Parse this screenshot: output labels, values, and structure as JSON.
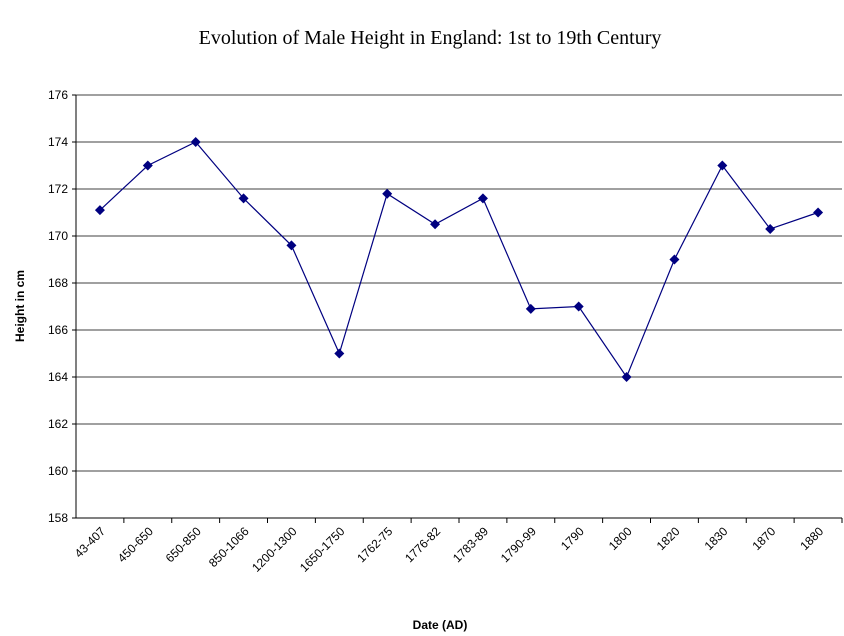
{
  "chart_data": {
    "type": "line",
    "title": "Evolution of Male Height in England: 1st to 19th Century",
    "x_label": "Date (AD)",
    "y_label": "Height in cm",
    "categories": [
      "43-407",
      "450-650",
      "650-850",
      "850-1066",
      "1200-1300",
      "1650-1750",
      "1762-75",
      "1776-82",
      "1783-89",
      "1790-99",
      "1790",
      "1800",
      "1820",
      "1830",
      "1870",
      "1880"
    ],
    "series": [
      {
        "name": "Height",
        "color": "#000080",
        "values": [
          171.1,
          173,
          174,
          171.6,
          169.6,
          165,
          171.8,
          170.5,
          171.6,
          166.9,
          167,
          164,
          169,
          173,
          170.3,
          171
        ]
      }
    ],
    "ylim": [
      158,
      176
    ],
    "yticks": [
      158,
      160,
      162,
      164,
      166,
      168,
      170,
      172,
      174,
      176
    ],
    "grid": true
  }
}
